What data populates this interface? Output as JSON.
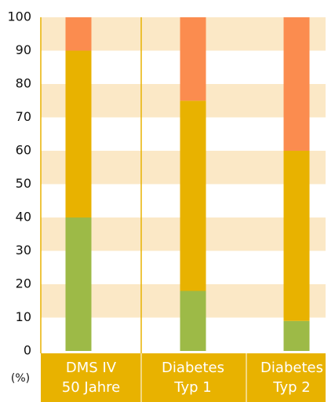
{
  "chart_data": {
    "type": "stacked-bar",
    "categories": [
      [
        "DMS IV",
        "50 Jahre"
      ],
      [
        "Diabetes",
        "Typ 1"
      ],
      [
        "Diabetes",
        "Typ 2"
      ]
    ],
    "series": [
      {
        "color": "#9dba47",
        "values": [
          40,
          18,
          9
        ]
      },
      {
        "color": "#e8b200",
        "values": [
          50,
          57,
          51
        ]
      },
      {
        "color": "#fb8c4f",
        "values": [
          10,
          25,
          40
        ]
      }
    ],
    "y_label": "(%)",
    "ylim": [
      0,
      100
    ],
    "yticks": [
      0,
      10,
      20,
      30,
      40,
      50,
      60,
      70,
      80,
      90,
      100
    ],
    "grid": true,
    "band_color": "#fbe8c6",
    "label_band_color": "#e8b200"
  }
}
